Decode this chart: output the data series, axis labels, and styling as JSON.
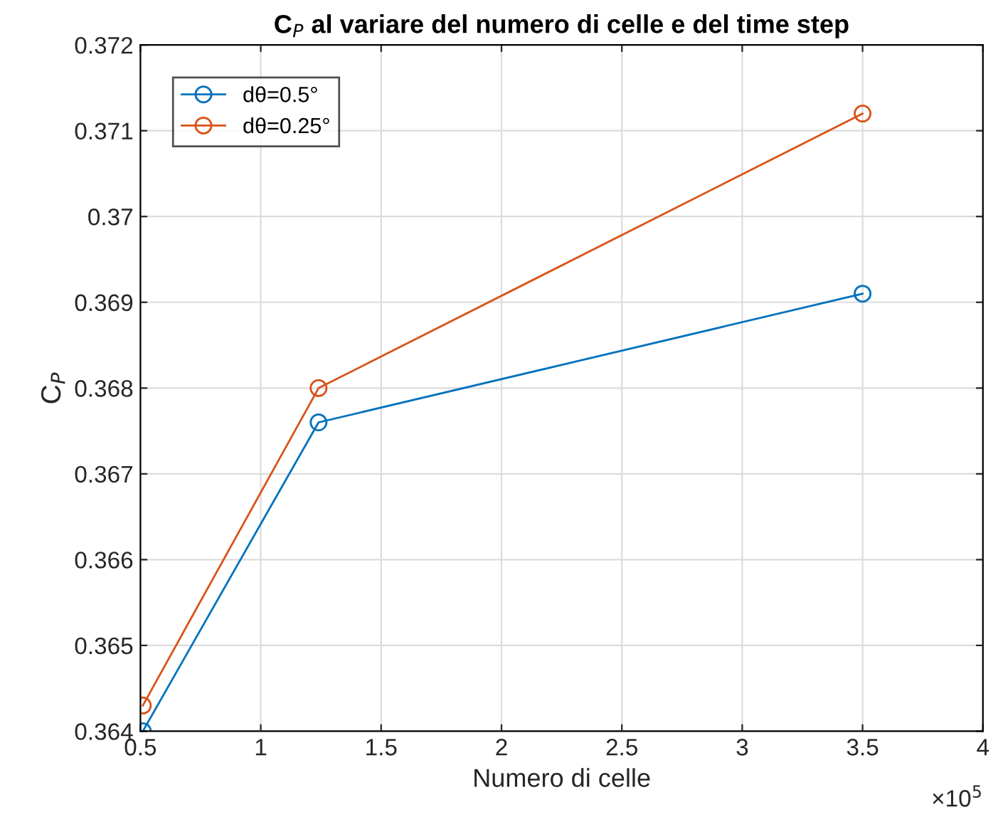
{
  "chart_data": {
    "type": "line",
    "title": "C$_{P}$ al variare del numero di celle e del time step",
    "xlabel": "Numero di celle",
    "ylabel": "C$_{P}$",
    "x": [
      0.51,
      1.24,
      3.5
    ],
    "series": [
      {
        "name": "dθ=0.5°",
        "color": "#0072bd",
        "values": [
          0.364,
          0.3676,
          0.3691
        ]
      },
      {
        "name": "dθ=0.25°",
        "color": "#d95319",
        "values": [
          0.3643,
          0.368,
          0.3712
        ]
      }
    ],
    "xlim": [
      0.5,
      4
    ],
    "xticks": [
      0.5,
      1,
      1.5,
      2,
      2.5,
      3,
      3.5,
      4
    ],
    "ylim": [
      0.364,
      0.372
    ],
    "yticks": [
      0.364,
      0.365,
      0.366,
      0.367,
      0.368,
      0.369,
      0.37,
      0.371,
      0.372
    ],
    "annotations": [
      "×10$^{5}$"
    ],
    "grid": true,
    "legend": "top left",
    "marker": "circle",
    "line_style": "solid"
  }
}
